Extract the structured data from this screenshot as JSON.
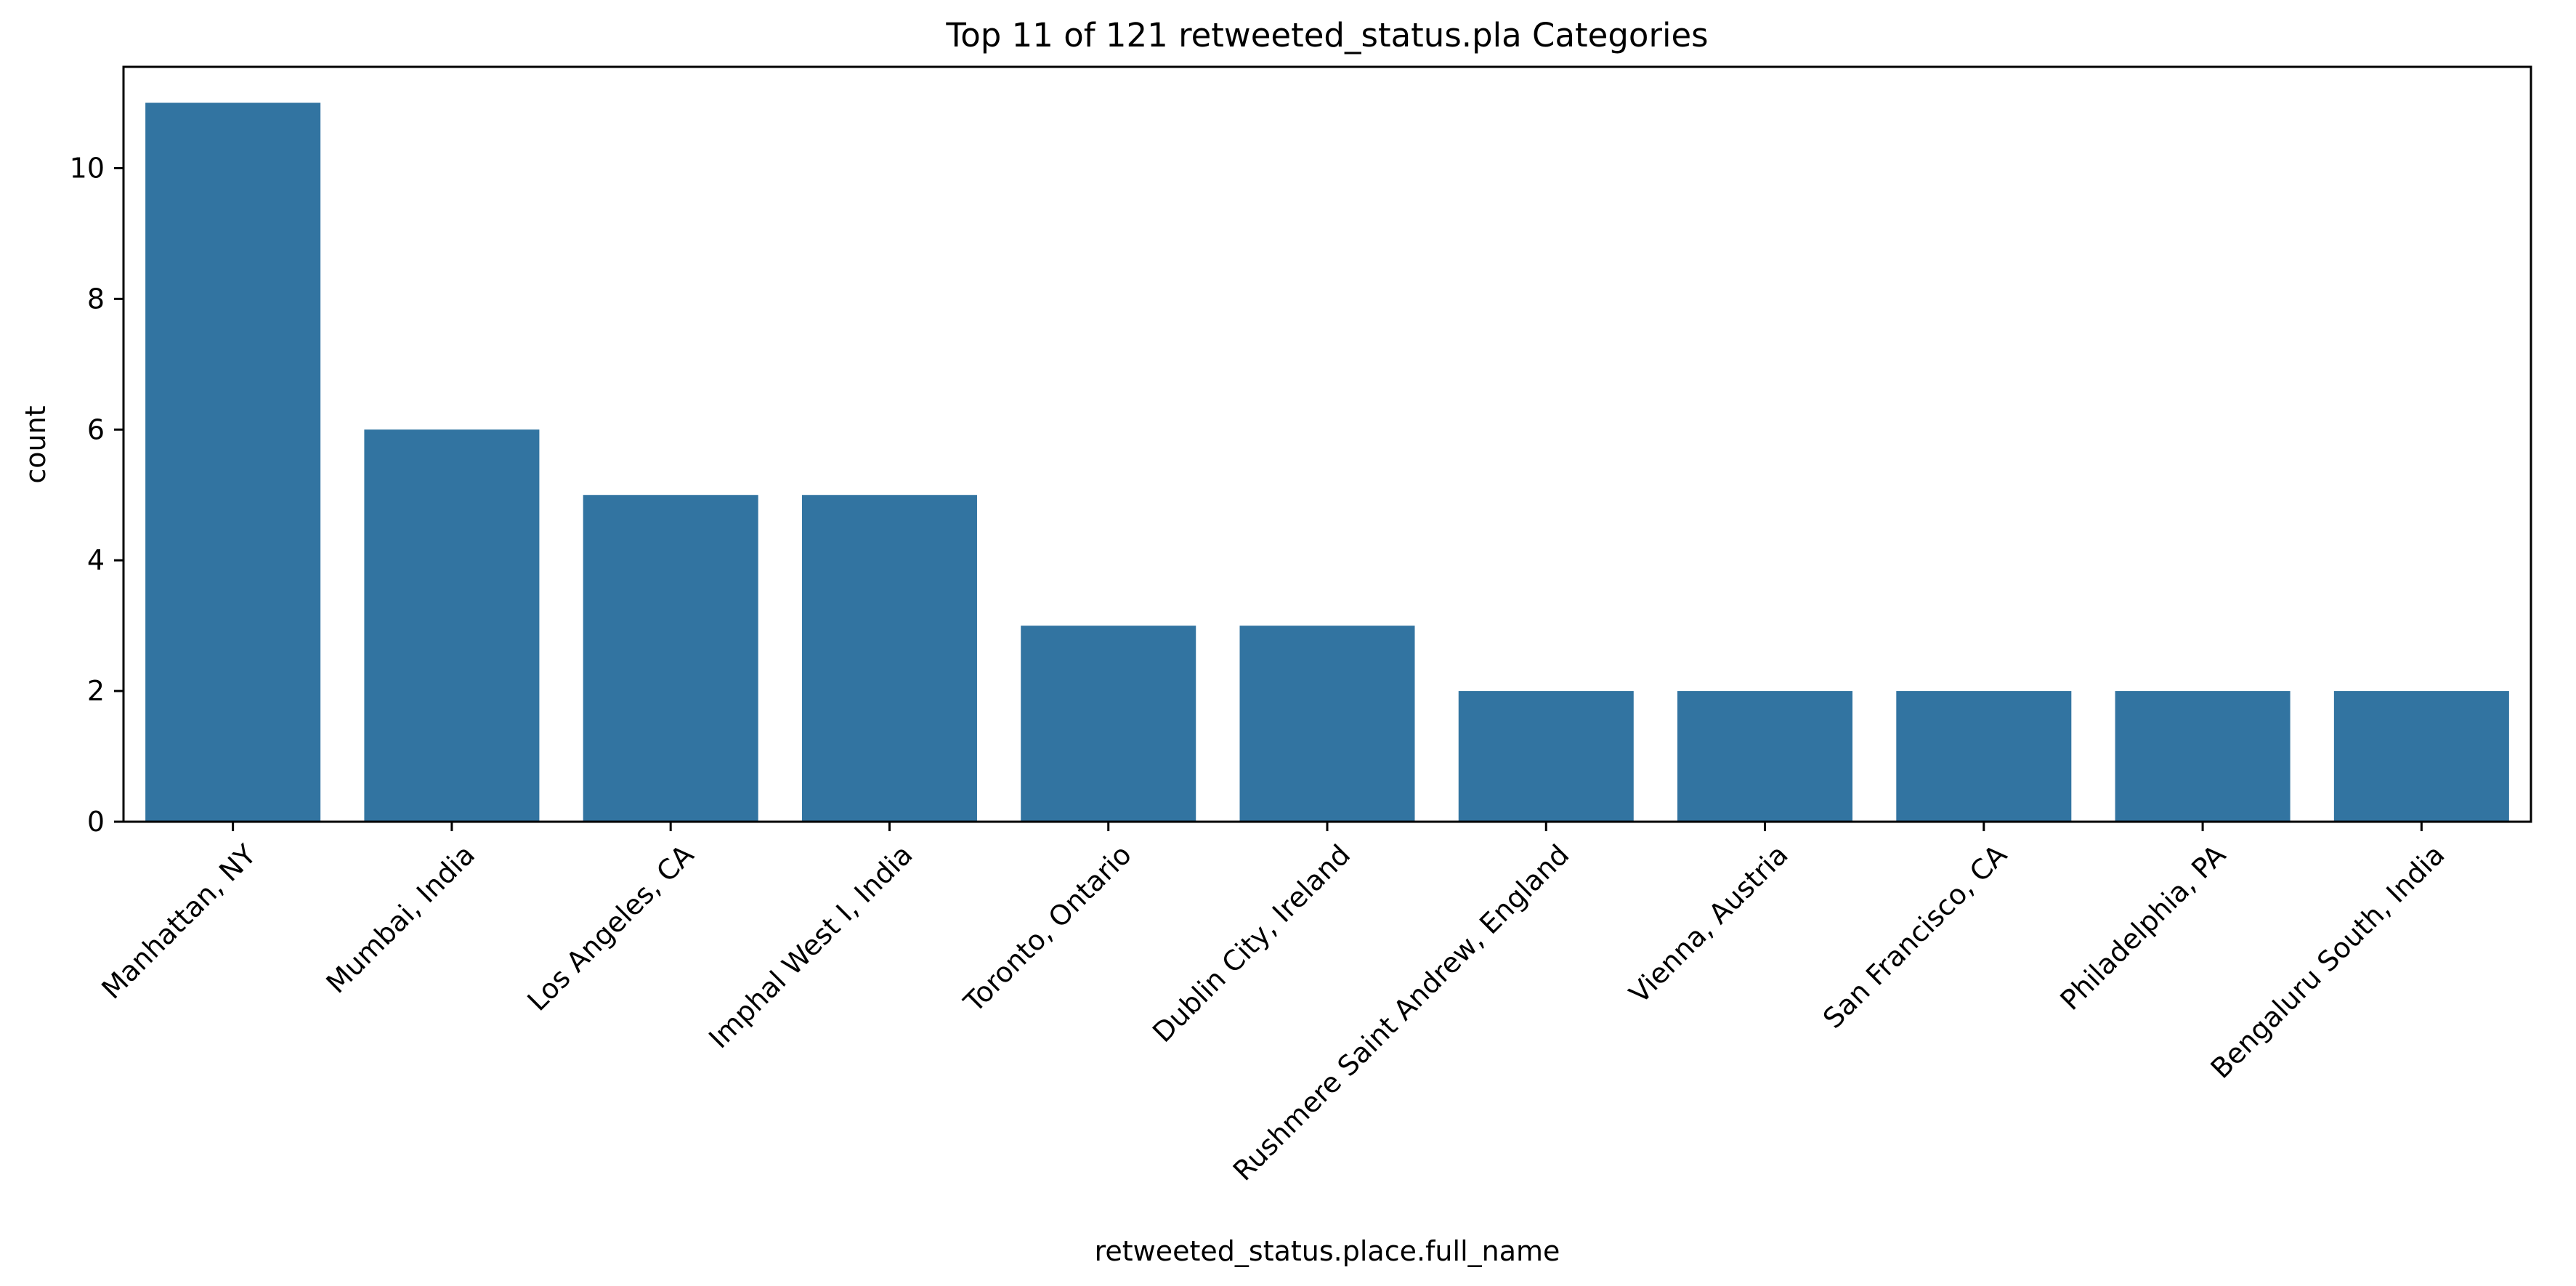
{
  "chart_data": {
    "type": "bar",
    "title": "Top 11 of 121 retweeted_status.pla Categories",
    "xlabel": "retweeted_status.place.full_name",
    "ylabel": "count",
    "categories": [
      "Manhattan, NY",
      "Mumbai, India",
      "Los Angeles, CA",
      "Imphal West I, India",
      "Toronto, Ontario",
      "Dublin City, Ireland",
      "Rushmere Saint Andrew, England",
      "Vienna, Austria",
      "San Francisco, CA",
      "Philadelphia, PA",
      "Bengaluru South, India"
    ],
    "values": [
      11,
      6,
      5,
      5,
      3,
      3,
      2,
      2,
      2,
      2,
      2
    ],
    "ylim": [
      0,
      11.55
    ],
    "yticks": [
      0,
      2,
      4,
      6,
      8,
      10
    ],
    "grid": false,
    "legend": "none",
    "bar_color": "#3274a1",
    "x_tick_rotation": 45
  }
}
